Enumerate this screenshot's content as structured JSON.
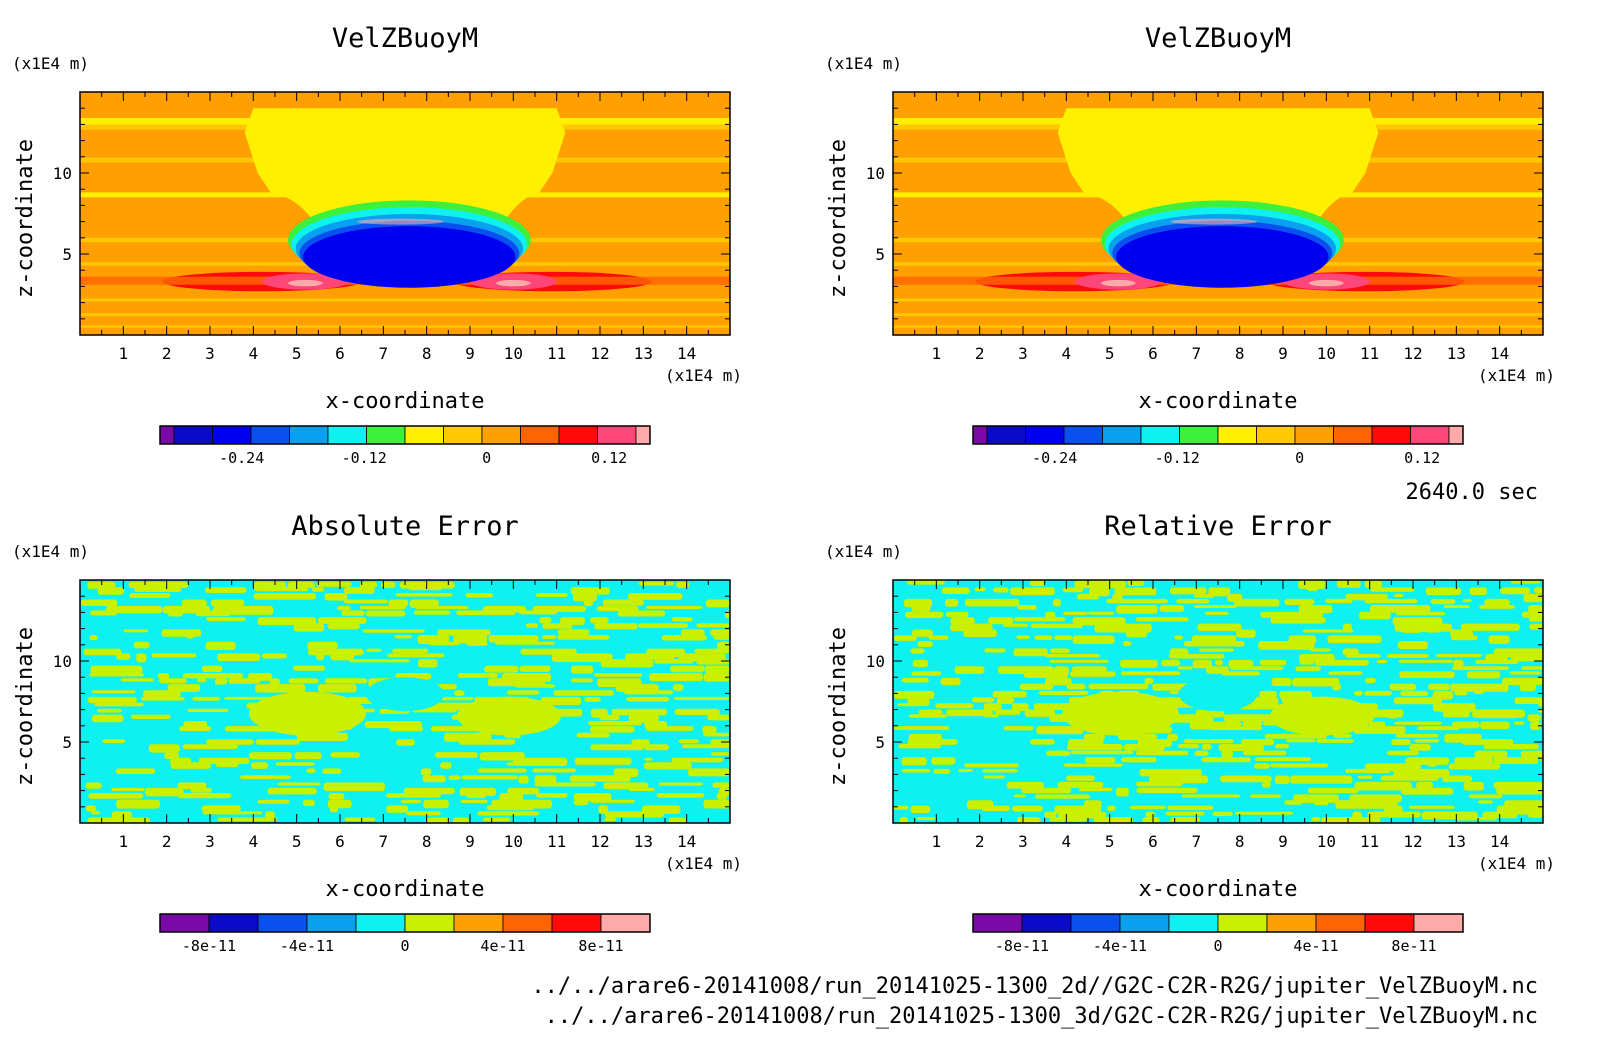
{
  "time_label": "2640.0 sec",
  "files": [
    "../../arare6-20141008/run_20141025-1300_2d//G2C-C2R-R2G/jupiter_VelZBuoyM.nc",
    "../../arare6-20141008/run_20141025-1300_3d/G2C-C2R-R2G/jupiter_VelZBuoyM.nc"
  ],
  "chart_data": [
    {
      "type": "heatmap",
      "title": "VelZBuoyM",
      "xlabel": "x-coordinate",
      "ylabel": "z-coordinate",
      "x_unit": "(x1E4 m)",
      "y_unit": "(x1E4 m)",
      "xlim": [
        0,
        15
      ],
      "ylim": [
        0,
        15
      ],
      "x_ticks": [
        1,
        2,
        3,
        4,
        5,
        6,
        7,
        8,
        9,
        10,
        11,
        12,
        13,
        14
      ],
      "y_ticks": [
        5,
        10
      ],
      "colors": [
        "#7a0aa5",
        "#0a0ac8",
        "#0000f0",
        "#0a50f0",
        "#0aa0f0",
        "#0ff0f0",
        "#3cf03c",
        "#fff000",
        "#ffc800",
        "#ffa000",
        "#ff6400",
        "#ff0a0a",
        "#ff4678",
        "#ffaaaa"
      ],
      "colorbar_ticks": [
        {
          "value": -0.24,
          "label": "-0.24"
        },
        {
          "value": -0.12,
          "label": "-0.12"
        },
        {
          "value": 0,
          "label": "0"
        },
        {
          "value": 0.12,
          "label": "0.12"
        }
      ],
      "colorbar_range": [
        -0.32,
        0.16
      ]
    },
    {
      "type": "heatmap",
      "title": "VelZBuoyM",
      "xlabel": "x-coordinate",
      "ylabel": "z-coordinate",
      "x_unit": "(x1E4 m)",
      "y_unit": "(x1E4 m)",
      "xlim": [
        0,
        15
      ],
      "ylim": [
        0,
        15
      ],
      "x_ticks": [
        1,
        2,
        3,
        4,
        5,
        6,
        7,
        8,
        9,
        10,
        11,
        12,
        13,
        14
      ],
      "y_ticks": [
        5,
        10
      ],
      "colors": [
        "#7a0aa5",
        "#0a0ac8",
        "#0000f0",
        "#0a50f0",
        "#0aa0f0",
        "#0ff0f0",
        "#3cf03c",
        "#fff000",
        "#ffc800",
        "#ffa000",
        "#ff6400",
        "#ff0a0a",
        "#ff4678",
        "#ffaaaa"
      ],
      "colorbar_ticks": [
        {
          "value": -0.24,
          "label": "-0.24"
        },
        {
          "value": -0.12,
          "label": "-0.12"
        },
        {
          "value": 0,
          "label": "0"
        },
        {
          "value": 0.12,
          "label": "0.12"
        }
      ],
      "colorbar_range": [
        -0.32,
        0.16
      ]
    },
    {
      "type": "heatmap",
      "title": "Absolute Error",
      "xlabel": "x-coordinate",
      "ylabel": "z-coordinate",
      "x_unit": "(x1E4 m)",
      "y_unit": "(x1E4 m)",
      "xlim": [
        0,
        15
      ],
      "ylim": [
        0,
        15
      ],
      "x_ticks": [
        1,
        2,
        3,
        4,
        5,
        6,
        7,
        8,
        9,
        10,
        11,
        12,
        13,
        14
      ],
      "y_ticks": [
        5,
        10
      ],
      "colors": [
        "#7a0aa5",
        "#0a0ac8",
        "#0a50f0",
        "#0aa0f0",
        "#0ff0f0",
        "#c8f000",
        "#ffa000",
        "#ff6400",
        "#ff0a0a",
        "#ffaaaa"
      ],
      "colorbar_ticks": [
        {
          "value": -8e-11,
          "label": "-8e-11"
        },
        {
          "value": -4e-11,
          "label": "-4e-11"
        },
        {
          "value": 0,
          "label": "0"
        },
        {
          "value": 4e-11,
          "label": "4e-11"
        },
        {
          "value": 8e-11,
          "label": "8e-11"
        }
      ],
      "colorbar_range": [
        -1e-10,
        1e-10
      ]
    },
    {
      "type": "heatmap",
      "title": "Relative Error",
      "xlabel": "x-coordinate",
      "ylabel": "z-coordinate",
      "x_unit": "(x1E4 m)",
      "y_unit": "(x1E4 m)",
      "xlim": [
        0,
        15
      ],
      "ylim": [
        0,
        15
      ],
      "x_ticks": [
        1,
        2,
        3,
        4,
        5,
        6,
        7,
        8,
        9,
        10,
        11,
        12,
        13,
        14
      ],
      "y_ticks": [
        5,
        10
      ],
      "colors": [
        "#7a0aa5",
        "#0a0ac8",
        "#0a50f0",
        "#0aa0f0",
        "#0ff0f0",
        "#c8f000",
        "#ffa000",
        "#ff6400",
        "#ff0a0a",
        "#ffaaaa"
      ],
      "colorbar_ticks": [
        {
          "value": -8e-11,
          "label": "-8e-11"
        },
        {
          "value": -4e-11,
          "label": "-4e-11"
        },
        {
          "value": 0,
          "label": "0"
        },
        {
          "value": 4e-11,
          "label": "4e-11"
        },
        {
          "value": 8e-11,
          "label": "8e-11"
        }
      ],
      "colorbar_range": [
        -1e-10,
        1e-10
      ]
    }
  ]
}
